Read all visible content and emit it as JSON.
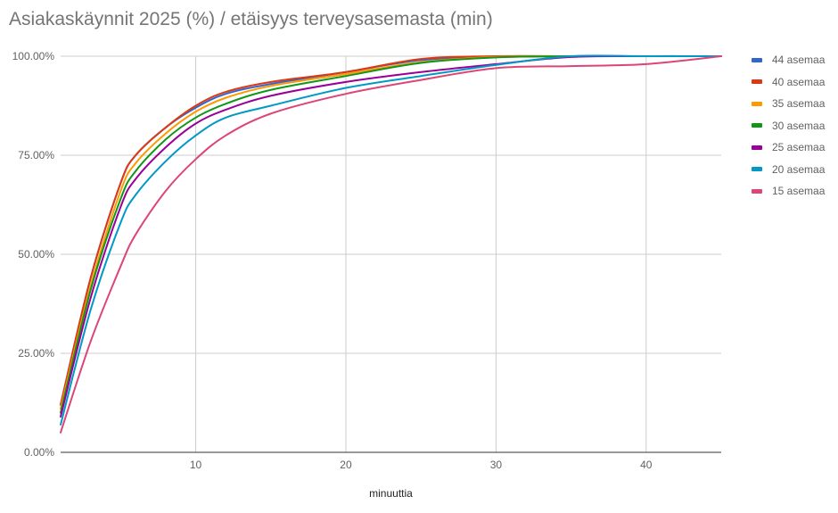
{
  "chart_data": {
    "type": "line",
    "title": "Asiakaskäynnit 2025 (%) / etäisyys terveysasemasta (min)",
    "xlabel": "minuuttia",
    "ylabel": "",
    "xlim": [
      1,
      45
    ],
    "ylim": [
      0,
      100
    ],
    "x_ticks": [
      10,
      20,
      30,
      40
    ],
    "y_ticks": [
      0,
      25,
      50,
      75,
      100
    ],
    "y_tick_labels": [
      "0.00%",
      "25.00%",
      "50.00%",
      "75.00%",
      "100.00%"
    ],
    "grid": true,
    "legend_position": "right",
    "series": [
      {
        "name": "44 asemaa",
        "color": "#3366cc",
        "x": [
          1,
          3,
          5,
          6,
          8,
          10,
          12,
          15,
          20,
          25,
          30,
          35,
          40,
          45
        ],
        "y": [
          12,
          44,
          68,
          75,
          82,
          87,
          90.5,
          93,
          96,
          99,
          99.8,
          100,
          100,
          100
        ]
      },
      {
        "name": "40 asemaa",
        "color": "#dc3912",
        "x": [
          1,
          3,
          5,
          6,
          8,
          10,
          12,
          15,
          20,
          25,
          30,
          35,
          40,
          45
        ],
        "y": [
          12,
          44,
          68,
          75,
          82,
          87.5,
          91,
          93.5,
          96,
          99.3,
          100,
          100,
          100,
          100
        ]
      },
      {
        "name": "35 asemaa",
        "color": "#ff9900",
        "x": [
          1,
          3,
          5,
          6,
          8,
          10,
          12,
          15,
          20,
          25,
          30,
          35,
          40,
          45
        ],
        "y": [
          11,
          42,
          66,
          73,
          80.5,
          86,
          89.5,
          92.5,
          95.5,
          98.5,
          99.8,
          100,
          100,
          100
        ]
      },
      {
        "name": "30 asemaa",
        "color": "#109618",
        "x": [
          1,
          3,
          5,
          6,
          8,
          10,
          12,
          15,
          20,
          25,
          30,
          35,
          40,
          45
        ],
        "y": [
          10,
          41,
          64,
          71,
          79,
          84.5,
          88,
          91.5,
          95,
          98.3,
          99.7,
          100,
          100,
          100
        ]
      },
      {
        "name": "25 asemaa",
        "color": "#990099",
        "x": [
          1,
          3,
          5,
          6,
          8,
          10,
          12,
          15,
          20,
          25,
          30,
          35,
          40,
          45
        ],
        "y": [
          9,
          39,
          62,
          69,
          77,
          83,
          86.5,
          90,
          93.5,
          96,
          98,
          99.8,
          100,
          100
        ]
      },
      {
        "name": "20 asemaa",
        "color": "#0099c6",
        "x": [
          1,
          3,
          5,
          6,
          8,
          10,
          12,
          15,
          20,
          25,
          30,
          35,
          40,
          45
        ],
        "y": [
          7,
          36,
          58,
          65,
          73.5,
          80,
          84.5,
          87.5,
          92,
          95,
          97.8,
          100,
          100,
          100
        ]
      },
      {
        "name": "15 asemaa",
        "color": "#dd4477",
        "x": [
          1,
          3,
          5,
          6,
          8,
          10,
          12,
          15,
          20,
          25,
          30,
          35,
          40,
          45
        ],
        "y": [
          5,
          28,
          47,
          55,
          66,
          74,
          80,
          85.5,
          90.5,
          94,
          97,
          97.5,
          98,
          100
        ]
      }
    ]
  }
}
